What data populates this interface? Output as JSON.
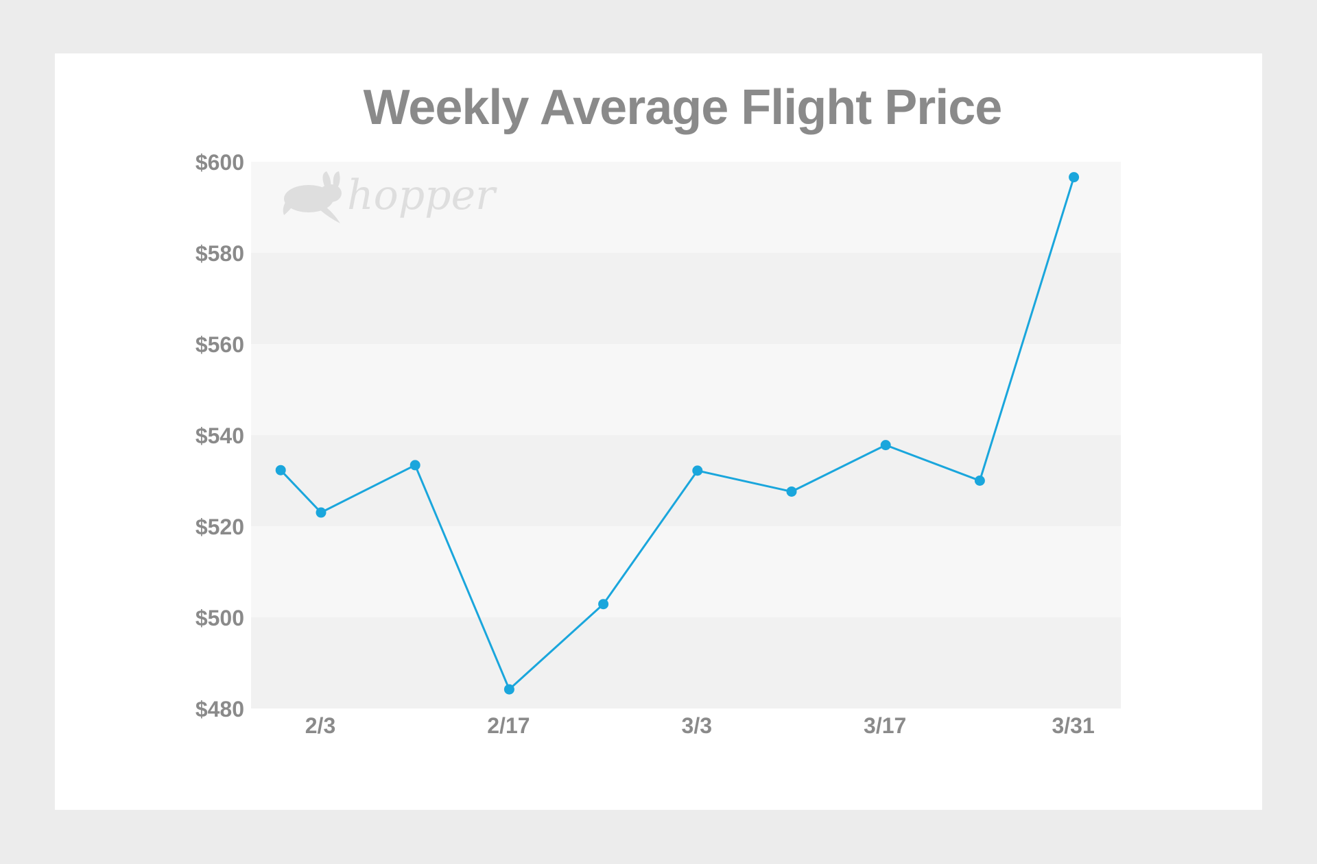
{
  "chart_data": {
    "type": "line",
    "title": "Weekly Average Flight Price",
    "xlabel": "",
    "ylabel": "",
    "ylim": [
      480,
      600
    ],
    "y_ticks": [
      "$480",
      "$500",
      "$520",
      "$540",
      "$560",
      "$580",
      "$600"
    ],
    "x_ticks": [
      "2/3",
      "2/17",
      "3/3",
      "3/17",
      "3/31"
    ],
    "grid": "alternating horizontal bands",
    "x": [
      "1/31",
      "2/3",
      "2/10",
      "2/17",
      "2/24",
      "3/3",
      "3/10",
      "3/17",
      "3/24",
      "3/31"
    ],
    "series": [
      {
        "values": [
          532.3,
          523.0,
          533.4,
          484.2,
          502.9,
          532.2,
          527.6,
          537.8,
          530.0,
          596.6
        ]
      }
    ]
  },
  "watermark": {
    "text": "hopper",
    "icon": "rabbit-icon"
  },
  "colors": {
    "line": "#1aa6dc",
    "text": "#8a8a8a",
    "band_light": "#f7f7f7",
    "band_dark": "#f1f1f1"
  }
}
